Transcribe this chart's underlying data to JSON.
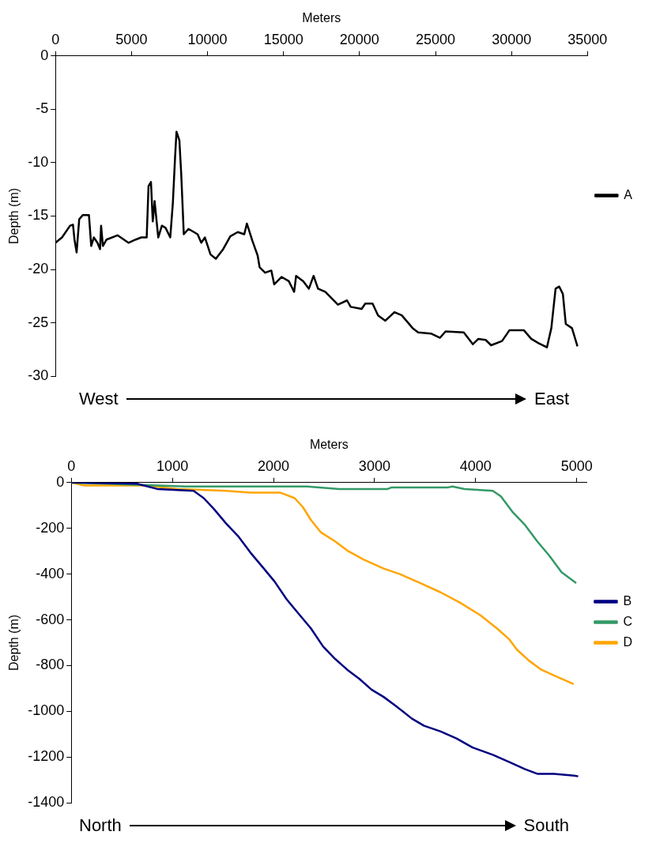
{
  "chart_data": [
    {
      "type": "line",
      "xlabel": "Meters",
      "ylabel": "Depth (m)",
      "xlim": [
        0,
        35000
      ],
      "xticks": [
        0,
        5000,
        10000,
        15000,
        20000,
        25000,
        30000,
        35000
      ],
      "ylim": [
        -30,
        0
      ],
      "yticks": [
        -30,
        -25,
        -20,
        -15,
        -10,
        -5,
        0
      ],
      "legend": "right",
      "marker": "none",
      "annotations": [
        "West",
        "East"
      ],
      "series": [
        {
          "name": "A",
          "color": "#000000",
          "x": [
            0,
            430,
            960,
            1150,
            1250,
            1390,
            1560,
            1800,
            2200,
            2350,
            2520,
            2760,
            2930,
            3000,
            3120,
            3360,
            4080,
            4800,
            5280,
            5640,
            6000,
            6120,
            6280,
            6400,
            6520,
            6640,
            6760,
            7000,
            7240,
            7550,
            7720,
            7870,
            7960,
            8150,
            8270,
            8440,
            8750,
            9350,
            9590,
            9830,
            10200,
            10550,
            11030,
            11500,
            11990,
            12420,
            12590,
            12950,
            13300,
            13430,
            13790,
            14200,
            14390,
            14870,
            15350,
            15700,
            15830,
            16300,
            16670,
            16980,
            17270,
            17750,
            18580,
            19180,
            19420,
            20140,
            20380,
            20860,
            21220,
            21700,
            22300,
            22780,
            23500,
            23860,
            24700,
            25300,
            25660,
            26860,
            27460,
            27820,
            28300,
            28660,
            29380,
            29860,
            30820,
            31300,
            31780,
            32330,
            32620,
            32900,
            33140,
            33380,
            33570,
            33980,
            34340
          ],
          "values": [
            -17.5,
            -17.0,
            -15.9,
            -15.8,
            -17.2,
            -18.4,
            -15.3,
            -14.9,
            -14.9,
            -17.8,
            -17.0,
            -17.5,
            -18.1,
            -15.9,
            -17.8,
            -17.2,
            -16.8,
            -17.5,
            -17.2,
            -17.0,
            -17.0,
            -12.2,
            -11.8,
            -15.5,
            -13.6,
            -15.3,
            -17.0,
            -15.9,
            -16.1,
            -17.0,
            -13.8,
            -9.4,
            -7.1,
            -7.9,
            -11.0,
            -16.7,
            -16.2,
            -16.7,
            -17.5,
            -17.0,
            -18.6,
            -19.0,
            -18.1,
            -16.9,
            -16.5,
            -16.7,
            -15.7,
            -17.3,
            -18.7,
            -19.8,
            -20.3,
            -20.1,
            -21.4,
            -20.7,
            -21.1,
            -22.1,
            -20.6,
            -21.1,
            -21.8,
            -20.6,
            -21.8,
            -22.1,
            -23.3,
            -22.9,
            -23.5,
            -23.7,
            -23.2,
            -23.2,
            -24.3,
            -24.8,
            -24.0,
            -24.3,
            -25.5,
            -25.9,
            -26.0,
            -26.4,
            -25.8,
            -25.9,
            -27.0,
            -26.5,
            -26.6,
            -27.1,
            -26.7,
            -25.7,
            -25.7,
            -26.5,
            -26.9,
            -27.3,
            -25.5,
            -21.8,
            -21.6,
            -22.3,
            -25.1,
            -25.5,
            -27.2
          ]
        }
      ]
    },
    {
      "type": "line",
      "xlabel": "Meters",
      "ylabel": "Depth (m)",
      "xlim": [
        0,
        5100
      ],
      "xticks": [
        0,
        1000,
        2000,
        3000,
        4000,
        5000
      ],
      "ylim": [
        -1400,
        0
      ],
      "yticks": [
        -1400,
        -1200,
        -1000,
        -800,
        -600,
        -400,
        -200,
        0
      ],
      "legend": "right",
      "marker": "none",
      "annotations": [
        "North",
        "South"
      ],
      "series": [
        {
          "name": "B",
          "color": "#000080",
          "x": [
            0,
            650,
            850,
            1210,
            1310,
            1410,
            1530,
            1650,
            1770,
            1890,
            2010,
            2130,
            2250,
            2370,
            2490,
            2610,
            2730,
            2850,
            2970,
            3090,
            3210,
            3370,
            3490,
            3650,
            3810,
            3970,
            4170,
            4330,
            4490,
            4610,
            4775,
            4975,
            5015
          ],
          "values": [
            0,
            -5,
            -28,
            -36,
            -68,
            -115,
            -178,
            -234,
            -305,
            -368,
            -432,
            -510,
            -574,
            -637,
            -716,
            -771,
            -818,
            -858,
            -905,
            -937,
            -976,
            -1032,
            -1063,
            -1087,
            -1118,
            -1158,
            -1190,
            -1221,
            -1253,
            -1273,
            -1273,
            -1281,
            -1284
          ]
        },
        {
          "name": "C",
          "color": "#339966",
          "x": [
            0,
            1130,
            2330,
            2650,
            3130,
            3170,
            3730,
            3770,
            3890,
            4050,
            4170,
            4250,
            4370,
            4490,
            4610,
            4730,
            4850,
            4995
          ],
          "values": [
            0,
            -17,
            -17,
            -28,
            -28,
            -21,
            -21,
            -17,
            -28,
            -33,
            -36,
            -60,
            -131,
            -186,
            -257,
            -320,
            -392,
            -439
          ]
        },
        {
          "name": "D",
          "color": "#ffa500",
          "x": [
            0,
            130,
            490,
            730,
            1050,
            1530,
            1770,
            2070,
            2210,
            2290,
            2370,
            2470,
            2610,
            2730,
            2890,
            3090,
            3250,
            3450,
            3650,
            3850,
            4050,
            4210,
            4330,
            4410,
            4530,
            4650,
            4810,
            4970
          ],
          "values": [
            0,
            -13,
            -13,
            -13,
            -28,
            -36,
            -44,
            -44,
            -68,
            -107,
            -163,
            -218,
            -257,
            -297,
            -336,
            -376,
            -400,
            -439,
            -479,
            -526,
            -581,
            -637,
            -684,
            -731,
            -779,
            -818,
            -850,
            -881
          ]
        }
      ]
    }
  ]
}
